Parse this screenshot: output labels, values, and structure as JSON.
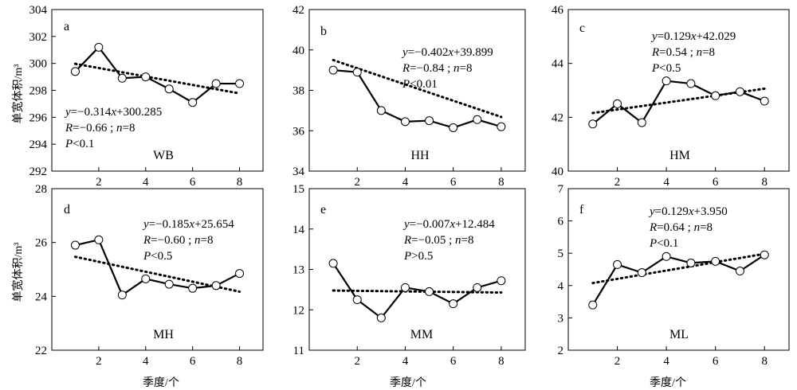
{
  "chart_data": [
    {
      "type": "line",
      "panel": "a",
      "station": "WB",
      "x": [
        1,
        2,
        3,
        4,
        5,
        6,
        7,
        8
      ],
      "xticks": [
        "2",
        "4",
        "6",
        "8"
      ],
      "ylim": [
        292,
        304
      ],
      "yticks": [
        "292",
        "294",
        "296",
        "298",
        "300",
        "302",
        "304"
      ],
      "series": [
        {
          "values": [
            299.4,
            301.2,
            298.9,
            299.0,
            298.1,
            297.1,
            298.5,
            298.5
          ]
        },
        {
          "values": [
            299.971,
            299.657,
            299.343,
            299.029,
            298.715,
            298.401,
            298.087,
            297.773
          ]
        }
      ],
      "annotation": [
        "y=−0.314x+300.285",
        "R=−0.66 ; n=8",
        "P<0.1"
      ]
    },
    {
      "type": "line",
      "panel": "b",
      "station": "HH",
      "x": [
        1,
        2,
        3,
        4,
        5,
        6,
        7,
        8
      ],
      "xticks": [
        "2",
        "4",
        "6",
        "8"
      ],
      "ylim": [
        34,
        42
      ],
      "yticks": [
        "34",
        "36",
        "38",
        "40",
        "42"
      ],
      "series": [
        {
          "values": [
            39.0,
            38.9,
            37.0,
            36.45,
            36.5,
            36.15,
            36.55,
            36.2
          ]
        },
        {
          "values": [
            39.497,
            39.095,
            38.693,
            38.291,
            37.889,
            37.487,
            37.085,
            36.683
          ]
        }
      ],
      "annotation": [
        "y=−0.402x+39.899",
        "R=−0.84 ; n=8",
        "P<0.01"
      ]
    },
    {
      "type": "line",
      "panel": "c",
      "station": "HM",
      "x": [
        1,
        2,
        3,
        4,
        5,
        6,
        7,
        8
      ],
      "xticks": [
        "2",
        "4",
        "6",
        "8"
      ],
      "ylim": [
        40,
        46
      ],
      "yticks": [
        "40",
        "42",
        "44",
        "46"
      ],
      "series": [
        {
          "values": [
            41.75,
            42.5,
            41.8,
            43.35,
            43.25,
            42.8,
            42.95,
            42.6
          ]
        },
        {
          "values": [
            42.158,
            42.287,
            42.416,
            42.545,
            42.674,
            42.803,
            42.932,
            43.061
          ]
        }
      ],
      "annotation": [
        "y=0.129x+42.029",
        "R=0.54 ; n=8",
        "P<0.5"
      ]
    },
    {
      "type": "line",
      "panel": "d",
      "station": "MH",
      "x": [
        1,
        2,
        3,
        4,
        5,
        6,
        7,
        8
      ],
      "xticks": [
        "2",
        "4",
        "6",
        "8"
      ],
      "ylim": [
        22,
        28
      ],
      "yticks": [
        "22",
        "24",
        "26",
        "28"
      ],
      "series": [
        {
          "values": [
            25.9,
            26.1,
            24.05,
            24.65,
            24.45,
            24.3,
            24.4,
            24.85
          ]
        },
        {
          "values": [
            25.469,
            25.284,
            25.099,
            24.914,
            24.729,
            24.544,
            24.359,
            24.174
          ]
        }
      ],
      "annotation": [
        "y=−0.185x+25.654",
        "R=−0.60 ; n=8",
        "P<0.5"
      ]
    },
    {
      "type": "line",
      "panel": "e",
      "station": "MM",
      "x": [
        1,
        2,
        3,
        4,
        5,
        6,
        7,
        8
      ],
      "xticks": [
        "2",
        "4",
        "6",
        "8"
      ],
      "ylim": [
        11,
        15
      ],
      "yticks": [
        "11",
        "12",
        "13",
        "14",
        "15"
      ],
      "series": [
        {
          "values": [
            13.15,
            12.25,
            11.8,
            12.55,
            12.45,
            12.15,
            12.55,
            12.72
          ]
        },
        {
          "values": [
            12.477,
            12.47,
            12.463,
            12.456,
            12.449,
            12.442,
            12.435,
            12.428
          ]
        }
      ],
      "annotation": [
        "y=−0.007x+12.484",
        "R=−0.05 ; n=8",
        "P>0.5"
      ]
    },
    {
      "type": "line",
      "panel": "f",
      "station": "ML",
      "x": [
        1,
        2,
        3,
        4,
        5,
        6,
        7,
        8
      ],
      "xticks": [
        "2",
        "4",
        "6",
        "8"
      ],
      "ylim": [
        2,
        7
      ],
      "yticks": [
        "2",
        "3",
        "4",
        "5",
        "6",
        "7"
      ],
      "series": [
        {
          "values": [
            3.4,
            4.65,
            4.4,
            4.9,
            4.7,
            4.75,
            4.45,
            4.95
          ]
        },
        {
          "values": [
            4.079,
            4.208,
            4.337,
            4.466,
            4.595,
            4.724,
            4.853,
            4.982
          ]
        }
      ],
      "annotation": [
        "y=0.129x+3.950",
        "R=0.64 ; n=8",
        "P<0.1"
      ]
    }
  ],
  "labels": {
    "ylabel": "单宽体积/m³",
    "xlabel": "季度/个"
  }
}
